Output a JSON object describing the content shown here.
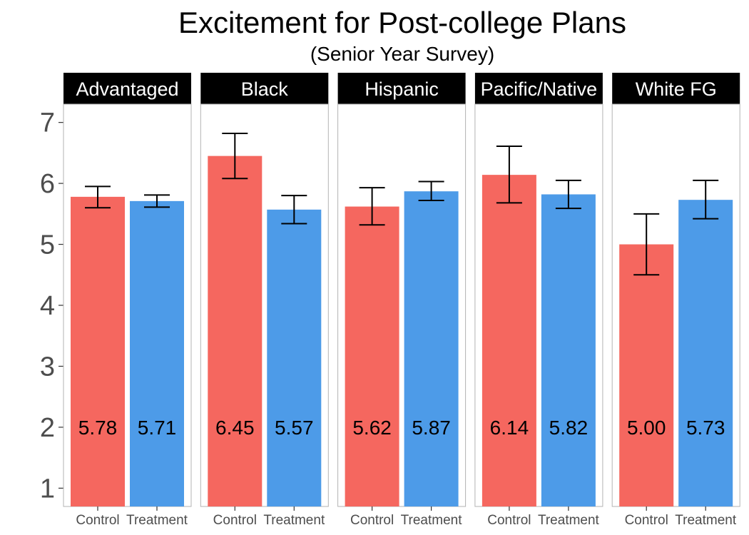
{
  "chart_data": {
    "type": "bar",
    "title": "Excitement for Post-college Plans",
    "subtitle": "(Senior Year Survey)",
    "xlabel": "",
    "ylabel": "",
    "ylim": [
      0.7,
      7.3
    ],
    "yticks": [
      "1",
      "2",
      "3",
      "4",
      "5",
      "6",
      "7"
    ],
    "categories": [
      "Control",
      "Treatment"
    ],
    "colors": {
      "Control": "#f5675f",
      "Treatment": "#4d9be8"
    },
    "grid": false,
    "label_y": 2,
    "facets": [
      {
        "name": "Advantaged",
        "bars": [
          {
            "category": "Control",
            "value": 5.78,
            "label": "5.78",
            "ci": [
              5.6,
              5.95
            ]
          },
          {
            "category": "Treatment",
            "value": 5.71,
            "label": "5.71",
            "ci": [
              5.61,
              5.81
            ]
          }
        ]
      },
      {
        "name": "Black",
        "bars": [
          {
            "category": "Control",
            "value": 6.45,
            "label": "6.45",
            "ci": [
              6.08,
              6.82
            ]
          },
          {
            "category": "Treatment",
            "value": 5.57,
            "label": "5.57",
            "ci": [
              5.34,
              5.8
            ]
          }
        ]
      },
      {
        "name": "Hispanic",
        "bars": [
          {
            "category": "Control",
            "value": 5.62,
            "label": "5.62",
            "ci": [
              5.32,
              5.93
            ]
          },
          {
            "category": "Treatment",
            "value": 5.87,
            "label": "5.87",
            "ci": [
              5.72,
              6.03
            ]
          }
        ]
      },
      {
        "name": "Pacific/Native",
        "bars": [
          {
            "category": "Control",
            "value": 6.14,
            "label": "6.14",
            "ci": [
              5.68,
              6.61
            ]
          },
          {
            "category": "Treatment",
            "value": 5.82,
            "label": "5.82",
            "ci": [
              5.59,
              6.05
            ]
          }
        ]
      },
      {
        "name": "White FG",
        "bars": [
          {
            "category": "Control",
            "value": 5.0,
            "label": "5.00",
            "ci": [
              4.5,
              5.5
            ]
          },
          {
            "category": "Treatment",
            "value": 5.73,
            "label": "5.73",
            "ci": [
              5.42,
              6.05
            ]
          }
        ]
      }
    ]
  }
}
